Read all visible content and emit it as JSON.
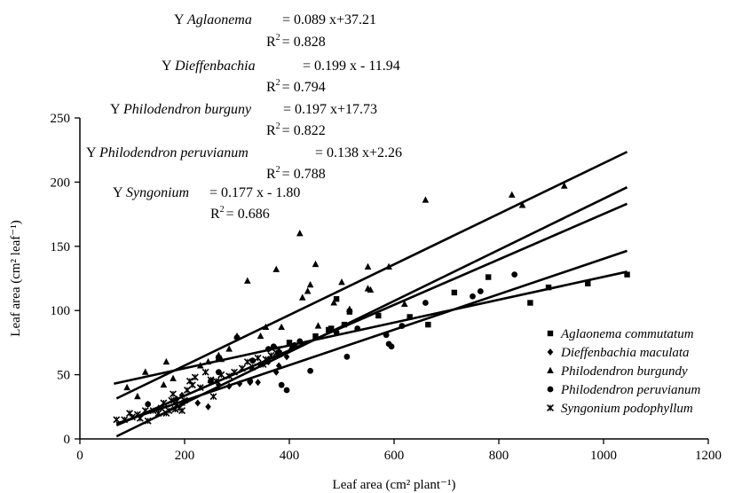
{
  "chart_data": {
    "type": "scatter",
    "xlabel": "Leaf area (cm² plant⁻¹)",
    "ylabel": "Leaf area (cm² leaf⁻¹)",
    "xlim": [
      0,
      1200
    ],
    "ylim": [
      0,
      250
    ],
    "xticks": [
      "0",
      "200",
      "400",
      "600",
      "800",
      "1000",
      "1200"
    ],
    "yticks": [
      "0",
      "50",
      "100",
      "150",
      "200",
      "250"
    ],
    "legend_position": "bottom-right",
    "equations": [
      {
        "prefix": "Y ",
        "species": "Aglaonema",
        "formula": "= 0.089 x+37.21",
        "r2_label": "R",
        "r2_sup": "2",
        "r2_value": "= 0.828"
      },
      {
        "prefix": "Y ",
        "species": "Dieffenbachia",
        "formula": "= 0.199 x - 11.94",
        "r2_label": "R",
        "r2_sup": "2",
        "r2_value": "= 0.794"
      },
      {
        "prefix": "Y ",
        "species": "Philodendron burguny",
        "formula": "= 0.197 x+17.73",
        "r2_label": "R",
        "r2_sup": "2",
        "r2_value": "= 0.822"
      },
      {
        "prefix": "Y ",
        "species": "Philodendron peruvianum",
        "formula": "= 0.138 x+2.26",
        "r2_label": "R",
        "r2_sup": "2",
        "r2_value": "= 0.788"
      },
      {
        "prefix": "Y ",
        "species": "Syngonium",
        "formula": "= 0.177 x - 1.80",
        "r2_label": "R",
        "r2_sup": "2",
        "r2_value": "= 0.686"
      }
    ],
    "series": [
      {
        "name": "Aglaonema commutatum",
        "marker": "square",
        "fit": {
          "slope": 0.089,
          "intercept": 37.21,
          "x_range": [
            65,
            1045
          ]
        },
        "points": [
          [
            265,
            63
          ],
          [
            380,
            67
          ],
          [
            400,
            75
          ],
          [
            450,
            80
          ],
          [
            475,
            85
          ],
          [
            480,
            86
          ],
          [
            490,
            109
          ],
          [
            505,
            89
          ],
          [
            515,
            99
          ],
          [
            570,
            96
          ],
          [
            630,
            95
          ],
          [
            665,
            89
          ],
          [
            715,
            114
          ],
          [
            780,
            126
          ],
          [
            860,
            106
          ],
          [
            895,
            118
          ],
          [
            970,
            121
          ],
          [
            1045,
            128
          ]
        ]
      },
      {
        "name": "Dieffenbachia maculata",
        "marker": "diamond",
        "fit": {
          "slope": 0.199,
          "intercept": -11.94,
          "x_range": [
            70,
            1045
          ]
        },
        "points": [
          [
            130,
            27
          ],
          [
            185,
            31
          ],
          [
            195,
            34
          ],
          [
            225,
            28
          ],
          [
            245,
            25
          ],
          [
            265,
            42
          ],
          [
            285,
            41
          ],
          [
            305,
            43
          ],
          [
            325,
            44
          ],
          [
            340,
            44
          ],
          [
            360,
            60
          ],
          [
            375,
            52
          ],
          [
            380,
            57
          ],
          [
            395,
            64
          ]
        ]
      },
      {
        "name": "Philodendron burgundy",
        "marker": "triangle",
        "fit": {
          "slope": 0.197,
          "intercept": 17.73,
          "x_range": [
            70,
            1045
          ]
        },
        "points": [
          [
            90,
            40
          ],
          [
            110,
            33
          ],
          [
            125,
            52
          ],
          [
            160,
            42
          ],
          [
            165,
            60
          ],
          [
            178,
            47
          ],
          [
            195,
            28
          ],
          [
            230,
            57
          ],
          [
            245,
            60
          ],
          [
            265,
            65
          ],
          [
            270,
            62
          ],
          [
            285,
            70
          ],
          [
            300,
            80
          ],
          [
            320,
            123
          ],
          [
            345,
            80
          ],
          [
            355,
            87
          ],
          [
            375,
            132
          ],
          [
            385,
            87
          ],
          [
            405,
            72
          ],
          [
            420,
            160
          ],
          [
            425,
            110
          ],
          [
            435,
            115
          ],
          [
            440,
            120
          ],
          [
            450,
            136
          ],
          [
            455,
            88
          ],
          [
            485,
            106
          ],
          [
            500,
            122
          ],
          [
            515,
            101
          ],
          [
            550,
            117
          ],
          [
            555,
            116
          ],
          [
            550,
            134
          ],
          [
            590,
            134
          ],
          [
            620,
            105
          ],
          [
            660,
            186
          ],
          [
            825,
            190
          ],
          [
            845,
            182
          ],
          [
            925,
            197
          ]
        ]
      },
      {
        "name": "Philodendron peruvianum",
        "marker": "circle",
        "fit": {
          "slope": 0.138,
          "intercept": 2.26,
          "x_range": [
            70,
            1045
          ]
        },
        "points": [
          [
            130,
            27
          ],
          [
            250,
            45
          ],
          [
            265,
            52
          ],
          [
            300,
            79
          ],
          [
            325,
            45
          ],
          [
            330,
            61
          ],
          [
            345,
            58
          ],
          [
            360,
            70
          ],
          [
            370,
            72
          ],
          [
            385,
            42
          ],
          [
            395,
            38
          ],
          [
            410,
            73
          ],
          [
            420,
            76
          ],
          [
            440,
            53
          ],
          [
            490,
            83
          ],
          [
            510,
            64
          ],
          [
            530,
            86
          ],
          [
            585,
            81
          ],
          [
            590,
            74
          ],
          [
            595,
            72
          ],
          [
            615,
            88
          ],
          [
            660,
            106
          ],
          [
            750,
            111
          ],
          [
            765,
            115
          ],
          [
            830,
            128
          ]
        ]
      },
      {
        "name": "Syngonium podophyllum",
        "marker": "x",
        "fit": {
          "slope": 0.177,
          "intercept": -1.8,
          "x_range": [
            70,
            1045
          ]
        },
        "points": [
          [
            70,
            15
          ],
          [
            85,
            15
          ],
          [
            95,
            20
          ],
          [
            100,
            17
          ],
          [
            110,
            19
          ],
          [
            115,
            16
          ],
          [
            125,
            22
          ],
          [
            130,
            14
          ],
          [
            140,
            22
          ],
          [
            150,
            20
          ],
          [
            155,
            24
          ],
          [
            160,
            28
          ],
          [
            165,
            20
          ],
          [
            170,
            22
          ],
          [
            175,
            30
          ],
          [
            178,
            35
          ],
          [
            182,
            23
          ],
          [
            186,
            27
          ],
          [
            190,
            24
          ],
          [
            195,
            22
          ],
          [
            200,
            30
          ],
          [
            205,
            38
          ],
          [
            210,
            45
          ],
          [
            215,
            42
          ],
          [
            220,
            48
          ],
          [
            230,
            40
          ],
          [
            240,
            52
          ],
          [
            250,
            46
          ],
          [
            255,
            33
          ],
          [
            260,
            45
          ],
          [
            270,
            50
          ],
          [
            285,
            49
          ],
          [
            295,
            52
          ],
          [
            310,
            55
          ],
          [
            320,
            60
          ],
          [
            330,
            56
          ],
          [
            340,
            63
          ],
          [
            350,
            58
          ],
          [
            355,
            62
          ],
          [
            365,
            65
          ],
          [
            375,
            67
          ],
          [
            380,
            70
          ]
        ]
      }
    ]
  }
}
